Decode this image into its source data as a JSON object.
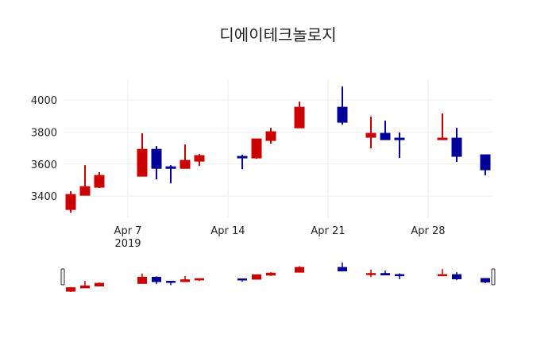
{
  "chart_data": {
    "type": "candlestick",
    "title": "디에이테크놀로지",
    "increasing_color": "#cc0000",
    "decreasing_color": "#000099",
    "x_range": [
      "2019-04-02T12:00",
      "2019-05-02T12:00"
    ],
    "ylim": [
      3262,
      4129
    ],
    "y_ticks": [
      3400,
      3600,
      3800,
      4000
    ],
    "x_ticks": [
      {
        "date": "2019-04-07",
        "label": "Apr 7",
        "sub": "2019"
      },
      {
        "date": "2019-04-14",
        "label": "Apr 14",
        "sub": ""
      },
      {
        "date": "2019-04-21",
        "label": "Apr 21",
        "sub": ""
      },
      {
        "date": "2019-04-28",
        "label": "Apr 28",
        "sub": ""
      }
    ],
    "rangeslider": true,
    "data": [
      {
        "date": "2019-04-03",
        "open": 3316,
        "high": 3430,
        "low": 3296,
        "close": 3410
      },
      {
        "date": "2019-04-04",
        "open": 3405,
        "high": 3593,
        "low": 3405,
        "close": 3459
      },
      {
        "date": "2019-04-05",
        "open": 3455,
        "high": 3549,
        "low": 3450,
        "close": 3529
      },
      {
        "date": "2019-04-08",
        "open": 3524,
        "high": 3792,
        "low": 3524,
        "close": 3692
      },
      {
        "date": "2019-04-09",
        "open": 3692,
        "high": 3712,
        "low": 3504,
        "close": 3573
      },
      {
        "date": "2019-04-10",
        "open": 3583,
        "high": 3593,
        "low": 3479,
        "close": 3573
      },
      {
        "date": "2019-04-11",
        "open": 3573,
        "high": 3722,
        "low": 3573,
        "close": 3623
      },
      {
        "date": "2019-04-12",
        "open": 3618,
        "high": 3663,
        "low": 3588,
        "close": 3653
      },
      {
        "date": "2019-04-15",
        "open": 3648,
        "high": 3658,
        "low": 3568,
        "close": 3638
      },
      {
        "date": "2019-04-16",
        "open": 3638,
        "high": 3757,
        "low": 3633,
        "close": 3757
      },
      {
        "date": "2019-04-17",
        "open": 3747,
        "high": 3826,
        "low": 3727,
        "close": 3802
      },
      {
        "date": "2019-04-19",
        "open": 3826,
        "high": 3990,
        "low": 3826,
        "close": 3955
      },
      {
        "date": "2019-04-22",
        "open": 3955,
        "high": 4084,
        "low": 3846,
        "close": 3861
      },
      {
        "date": "2019-04-24",
        "open": 3767,
        "high": 3896,
        "low": 3698,
        "close": 3792
      },
      {
        "date": "2019-04-25",
        "open": 3792,
        "high": 3871,
        "low": 3752,
        "close": 3752
      },
      {
        "date": "2019-04-26",
        "open": 3762,
        "high": 3797,
        "low": 3638,
        "close": 3752
      },
      {
        "date": "2019-04-29",
        "open": 3752,
        "high": 3916,
        "low": 3752,
        "close": 3762
      },
      {
        "date": "2019-04-30",
        "open": 3762,
        "high": 3826,
        "low": 3613,
        "close": 3648
      },
      {
        "date": "2019-05-02",
        "open": 3658,
        "high": 3658,
        "low": 3529,
        "close": 3564
      }
    ]
  }
}
